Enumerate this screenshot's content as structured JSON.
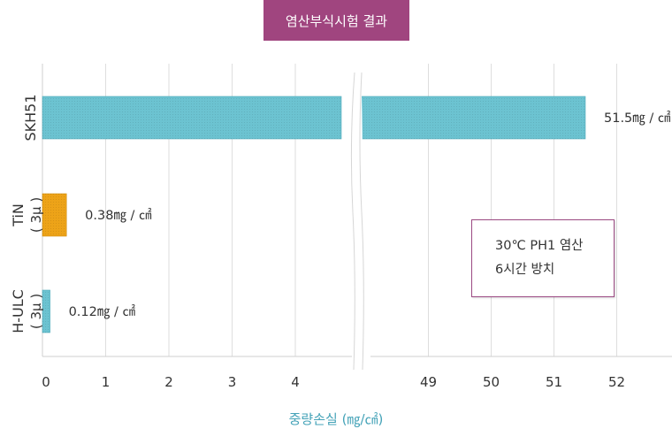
{
  "title": "염산부식시험 결과",
  "note": {
    "line1": "30℃ PH1 염산",
    "line2": "6시간 방치"
  },
  "colors": {
    "title_bg": "#a0457f",
    "bar_teal": "#6cc3d1",
    "bar_orange": "#eda318",
    "axis_label": "#45a3b8",
    "grid": "#dcdcdc"
  },
  "chart_data": {
    "type": "bar",
    "orientation": "horizontal",
    "title": "염산부식시험 결과",
    "xlabel": "중량손실 (㎎/㎠)",
    "ylabel": "",
    "axis_break": {
      "from": 4.7,
      "to": 48.5
    },
    "xlim_left": [
      0,
      4.7
    ],
    "xlim_right": [
      48.5,
      52.9
    ],
    "xticks_left": [
      0,
      1,
      2,
      3,
      4
    ],
    "xticks_right": [
      49,
      50,
      51,
      52
    ],
    "categories": [
      {
        "name": "SKH51",
        "sub": "",
        "value": 51.5,
        "label": "51.5㎎ / ㎠",
        "color": "#6cc3d1"
      },
      {
        "name": "TiN",
        "sub": "( 3μ )",
        "value": 0.38,
        "label": "0.38㎎ / ㎠",
        "color": "#eda318"
      },
      {
        "name": "H-ULC",
        "sub": "( 3μ )",
        "value": 0.12,
        "label": "0.12㎎ / ㎠",
        "color": "#6cc3d1"
      }
    ],
    "grid": true,
    "legend": "none"
  }
}
